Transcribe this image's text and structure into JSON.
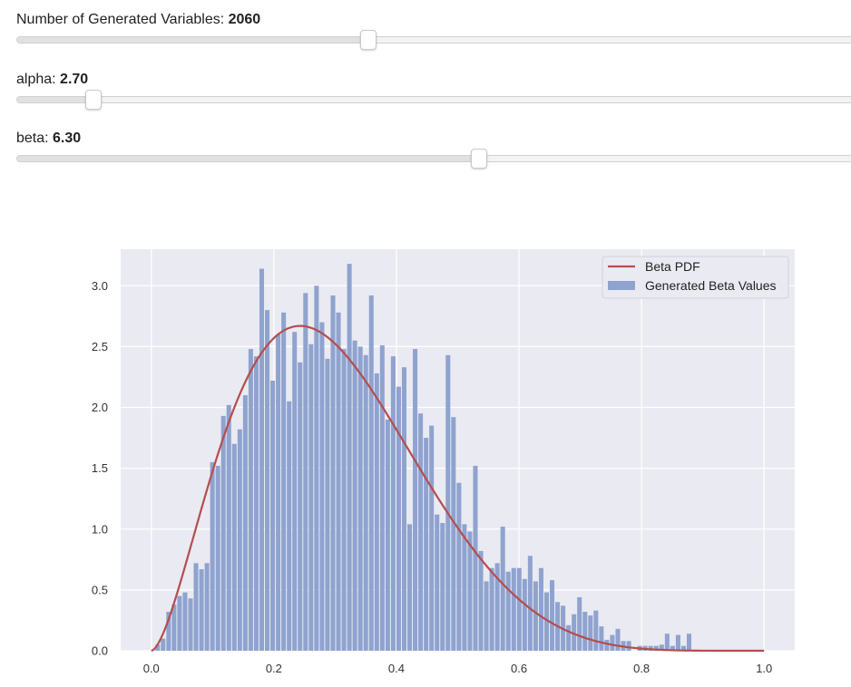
{
  "controls": {
    "sliders": [
      {
        "label": "Number of Generated Variables: ",
        "value": "2060",
        "fraction": 0.421
      },
      {
        "label": "alpha: ",
        "value": "2.70",
        "fraction": 0.091
      },
      {
        "label": "beta: ",
        "value": "6.30",
        "fraction": 0.554
      }
    ]
  },
  "chart_data": {
    "type": "bar",
    "title": "",
    "xlabel": "",
    "ylabel": "",
    "xlim": [
      -0.05,
      1.05
    ],
    "ylim": [
      0,
      3.3
    ],
    "xticks": [
      "0.0",
      "0.2",
      "0.4",
      "0.6",
      "0.8",
      "1.0"
    ],
    "yticks": [
      "0.0",
      "0.5",
      "1.0",
      "1.5",
      "2.0",
      "2.5",
      "3.0"
    ],
    "grid": true,
    "legend_position": "top-right",
    "legend": [
      "Beta PDF",
      "Generated Beta Values"
    ],
    "colors": {
      "histogram": "#8fa3cf",
      "pdf": "#b54d4f",
      "plot_bg": "#eaeaf2",
      "grid": "#ffffff"
    },
    "series": [
      {
        "name": "Generated Beta Values",
        "type": "histogram",
        "bin_start": 0.0066,
        "bin_width": 0.00894,
        "values": [
          0.05,
          0.1,
          0.32,
          0.38,
          0.45,
          0.48,
          0.43,
          0.72,
          0.67,
          0.72,
          1.55,
          1.52,
          1.93,
          2.02,
          1.7,
          1.82,
          2.1,
          2.48,
          2.42,
          3.14,
          2.8,
          2.22,
          2.6,
          2.78,
          2.05,
          2.62,
          2.37,
          2.94,
          2.52,
          3.0,
          2.7,
          2.4,
          2.92,
          2.78,
          2.48,
          3.18,
          2.55,
          2.5,
          2.43,
          2.92,
          2.28,
          2.51,
          1.9,
          2.42,
          2.17,
          2.33,
          1.04,
          2.48,
          1.95,
          1.75,
          1.85,
          1.12,
          1.05,
          2.43,
          1.92,
          1.38,
          1.04,
          0.98,
          1.52,
          0.82,
          0.57,
          0.68,
          0.72,
          1.02,
          0.65,
          0.68,
          0.68,
          0.59,
          0.78,
          0.57,
          0.68,
          0.48,
          0.58,
          0.4,
          0.37,
          0.21,
          0.3,
          0.44,
          0.32,
          0.29,
          0.33,
          0.2,
          0.09,
          0.13,
          0.18,
          0.08,
          0.08,
          0.0,
          0.04,
          0.04,
          0.04,
          0.04,
          0.05,
          0.14,
          0.04,
          0.13,
          0.04,
          0.14,
          0.0,
          0.0,
          0.0,
          0.0,
          0.0,
          0.0,
          0.0,
          0.0,
          0.0,
          0.0,
          0.0,
          0.0,
          0.0,
          0.0,
          0.0,
          0.0,
          0.0,
          0.0,
          0.0,
          0.0,
          0.0,
          0.0,
          0.0,
          0.0,
          0.0,
          0.0,
          0.0,
          0.0,
          0.0,
          0.0,
          0.0,
          0.0,
          0.0,
          0.0,
          0.04
        ]
      },
      {
        "name": "Beta PDF",
        "type": "line",
        "distribution": "beta",
        "alpha": 2.7,
        "beta": 6.3,
        "x_range": [
          0,
          1
        ]
      }
    ]
  }
}
